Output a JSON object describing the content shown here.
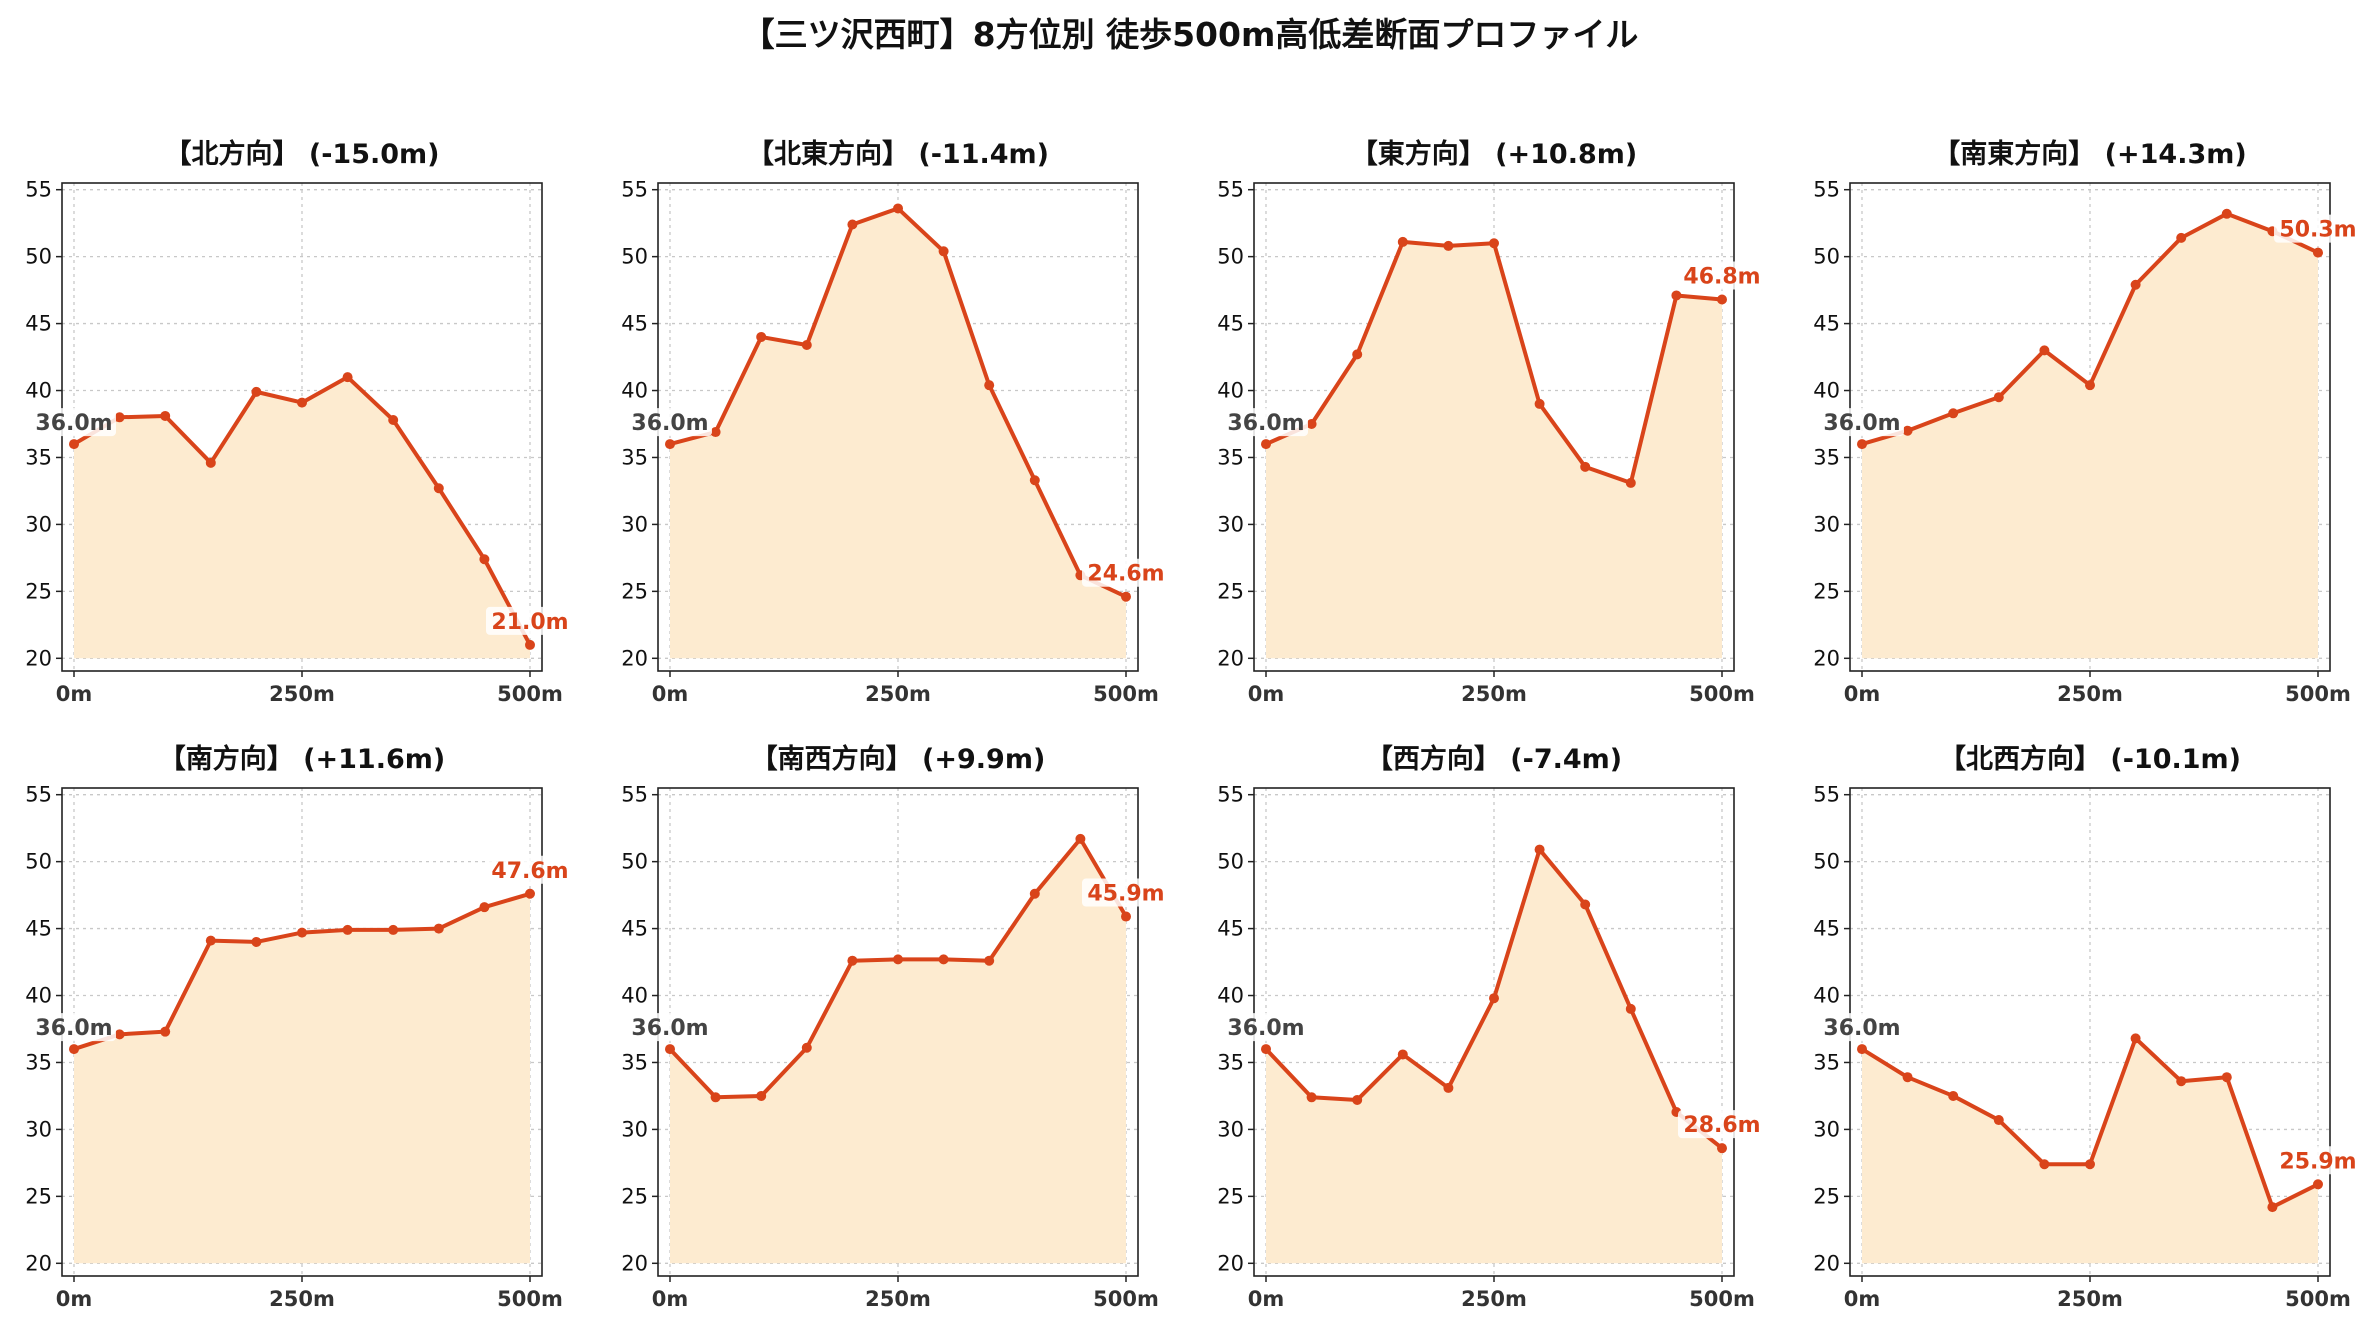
{
  "title": "【三ツ沢西町】8方位別 徒歩500m高低差断面プロファイル",
  "colors": {
    "line": "#d9441a",
    "fill": "#fdebd0",
    "start_label": "#444444",
    "end_label": "#d9441a"
  },
  "chart_data": [
    {
      "type": "area",
      "title": "【北方向】 (-15.0m)",
      "x": [
        0,
        50,
        100,
        150,
        200,
        250,
        300,
        350,
        400,
        450,
        500
      ],
      "y": [
        36.0,
        38.0,
        38.1,
        34.6,
        39.9,
        39.1,
        41.0,
        37.8,
        32.7,
        27.4,
        21.0
      ],
      "start_label": "36.0m",
      "end_label": "21.0m",
      "ylim": [
        20,
        55
      ],
      "yticks": [
        20,
        25,
        30,
        35,
        40,
        45,
        50,
        55
      ],
      "xticks": [
        {
          "value": 0,
          "label": "0m"
        },
        {
          "value": 250,
          "label": "250m"
        },
        {
          "value": 500,
          "label": "500m"
        }
      ],
      "grid": true
    },
    {
      "type": "area",
      "title": "【北東方向】 (-11.4m)",
      "x": [
        0,
        50,
        100,
        150,
        200,
        250,
        300,
        350,
        400,
        450,
        500
      ],
      "y": [
        36.0,
        36.9,
        44.0,
        43.4,
        52.4,
        53.6,
        50.4,
        40.4,
        33.3,
        26.2,
        24.6
      ],
      "start_label": "36.0m",
      "end_label": "24.6m",
      "ylim": [
        20,
        55
      ],
      "yticks": [
        20,
        25,
        30,
        35,
        40,
        45,
        50,
        55
      ],
      "xticks": [
        {
          "value": 0,
          "label": "0m"
        },
        {
          "value": 250,
          "label": "250m"
        },
        {
          "value": 500,
          "label": "500m"
        }
      ],
      "grid": true
    },
    {
      "type": "area",
      "title": "【東方向】 (+10.8m)",
      "x": [
        0,
        50,
        100,
        150,
        200,
        250,
        300,
        350,
        400,
        450,
        500
      ],
      "y": [
        36.0,
        37.5,
        42.7,
        51.1,
        50.8,
        51.0,
        39.0,
        34.3,
        33.1,
        47.1,
        46.8
      ],
      "start_label": "36.0m",
      "end_label": "46.8m",
      "ylim": [
        20,
        55
      ],
      "yticks": [
        20,
        25,
        30,
        35,
        40,
        45,
        50,
        55
      ],
      "xticks": [
        {
          "value": 0,
          "label": "0m"
        },
        {
          "value": 250,
          "label": "250m"
        },
        {
          "value": 500,
          "label": "500m"
        }
      ],
      "grid": true
    },
    {
      "type": "area",
      "title": "【南東方向】 (+14.3m)",
      "x": [
        0,
        50,
        100,
        150,
        200,
        250,
        300,
        350,
        400,
        450,
        500
      ],
      "y": [
        36.0,
        37.0,
        38.3,
        39.5,
        43.0,
        40.4,
        47.9,
        51.4,
        53.2,
        51.9,
        50.3
      ],
      "start_label": "36.0m",
      "end_label": "50.3m",
      "ylim": [
        20,
        55
      ],
      "yticks": [
        20,
        25,
        30,
        35,
        40,
        45,
        50,
        55
      ],
      "xticks": [
        {
          "value": 0,
          "label": "0m"
        },
        {
          "value": 250,
          "label": "250m"
        },
        {
          "value": 500,
          "label": "500m"
        }
      ],
      "grid": true
    },
    {
      "type": "area",
      "title": "【南方向】 (+11.6m)",
      "x": [
        0,
        50,
        100,
        150,
        200,
        250,
        300,
        350,
        400,
        450,
        500
      ],
      "y": [
        36.0,
        37.1,
        37.3,
        44.1,
        44.0,
        44.7,
        44.9,
        44.9,
        45.0,
        46.6,
        47.6
      ],
      "start_label": "36.0m",
      "end_label": "47.6m",
      "ylim": [
        20,
        55
      ],
      "yticks": [
        20,
        25,
        30,
        35,
        40,
        45,
        50,
        55
      ],
      "xticks": [
        {
          "value": 0,
          "label": "0m"
        },
        {
          "value": 250,
          "label": "250m"
        },
        {
          "value": 500,
          "label": "500m"
        }
      ],
      "grid": true
    },
    {
      "type": "area",
      "title": "【南西方向】 (+9.9m)",
      "x": [
        0,
        50,
        100,
        150,
        200,
        250,
        300,
        350,
        400,
        450,
        500
      ],
      "y": [
        36.0,
        32.4,
        32.5,
        36.1,
        42.6,
        42.7,
        42.7,
        42.6,
        47.6,
        51.7,
        45.9
      ],
      "start_label": "36.0m",
      "end_label": "45.9m",
      "ylim": [
        20,
        55
      ],
      "yticks": [
        20,
        25,
        30,
        35,
        40,
        45,
        50,
        55
      ],
      "xticks": [
        {
          "value": 0,
          "label": "0m"
        },
        {
          "value": 250,
          "label": "250m"
        },
        {
          "value": 500,
          "label": "500m"
        }
      ],
      "grid": true
    },
    {
      "type": "area",
      "title": "【西方向】 (-7.4m)",
      "x": [
        0,
        50,
        100,
        150,
        200,
        250,
        300,
        350,
        400,
        450,
        500
      ],
      "y": [
        36.0,
        32.4,
        32.2,
        35.6,
        33.1,
        39.8,
        50.9,
        46.8,
        39.0,
        31.3,
        28.6
      ],
      "start_label": "36.0m",
      "end_label": "28.6m",
      "ylim": [
        20,
        55
      ],
      "yticks": [
        20,
        25,
        30,
        35,
        40,
        45,
        50,
        55
      ],
      "xticks": [
        {
          "value": 0,
          "label": "0m"
        },
        {
          "value": 250,
          "label": "250m"
        },
        {
          "value": 500,
          "label": "500m"
        }
      ],
      "grid": true
    },
    {
      "type": "area",
      "title": "【北西方向】 (-10.1m)",
      "x": [
        0,
        50,
        100,
        150,
        200,
        250,
        300,
        350,
        400,
        450,
        500
      ],
      "y": [
        36.0,
        33.9,
        32.5,
        30.7,
        27.4,
        27.4,
        36.8,
        33.6,
        33.9,
        24.2,
        25.9
      ],
      "start_label": "36.0m",
      "end_label": "25.9m",
      "ylim": [
        20,
        55
      ],
      "yticks": [
        20,
        25,
        30,
        35,
        40,
        45,
        50,
        55
      ],
      "xticks": [
        {
          "value": 0,
          "label": "0m"
        },
        {
          "value": 250,
          "label": "250m"
        },
        {
          "value": 500,
          "label": "500m"
        }
      ],
      "grid": true
    }
  ]
}
